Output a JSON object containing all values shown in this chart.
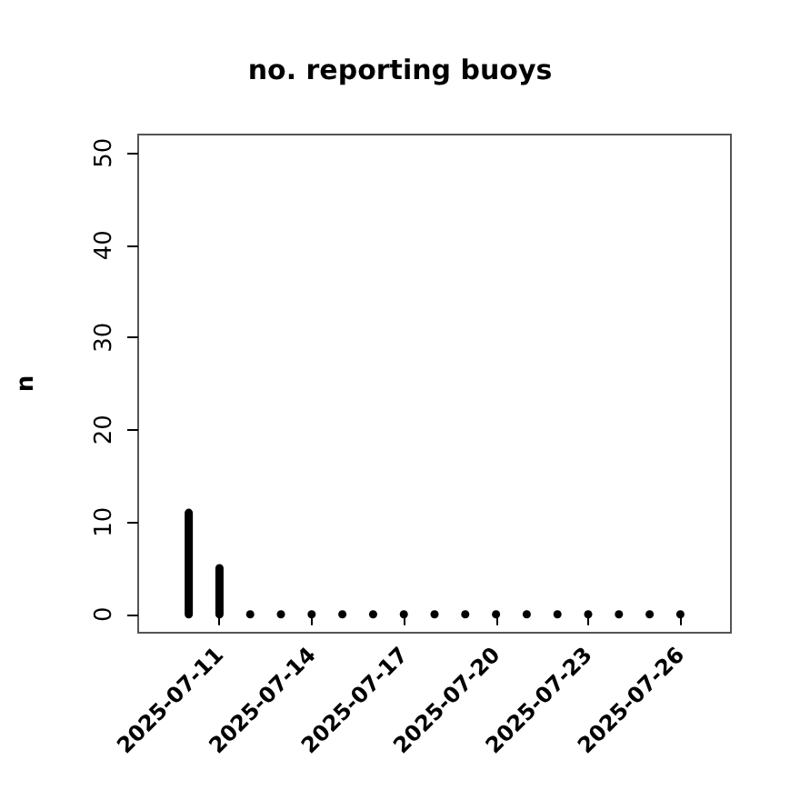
{
  "chart_data": {
    "type": "bar",
    "title": "no. reporting buoys",
    "ylabel": "n",
    "x": [
      "2025-07-10",
      "2025-07-11",
      "2025-07-12",
      "2025-07-13",
      "2025-07-14",
      "2025-07-15",
      "2025-07-16",
      "2025-07-17",
      "2025-07-18",
      "2025-07-19",
      "2025-07-20",
      "2025-07-21",
      "2025-07-22",
      "2025-07-23",
      "2025-07-24",
      "2025-07-25",
      "2025-07-26"
    ],
    "values": [
      11,
      5,
      0,
      0,
      0,
      0,
      0,
      0,
      0,
      0,
      0,
      0,
      0,
      0,
      0,
      0,
      0
    ],
    "color": "#000000",
    "xlim": [
      "2025-07-08T08:30",
      "2025-07-27T15:30"
    ],
    "xticks": [
      "2025-07-11",
      "2025-07-14",
      "2025-07-17",
      "2025-07-20",
      "2025-07-23",
      "2025-07-26"
    ],
    "ylim": [
      -2,
      52
    ],
    "yticks": [
      0,
      10,
      20,
      30,
      40,
      50
    ],
    "grid": false
  }
}
